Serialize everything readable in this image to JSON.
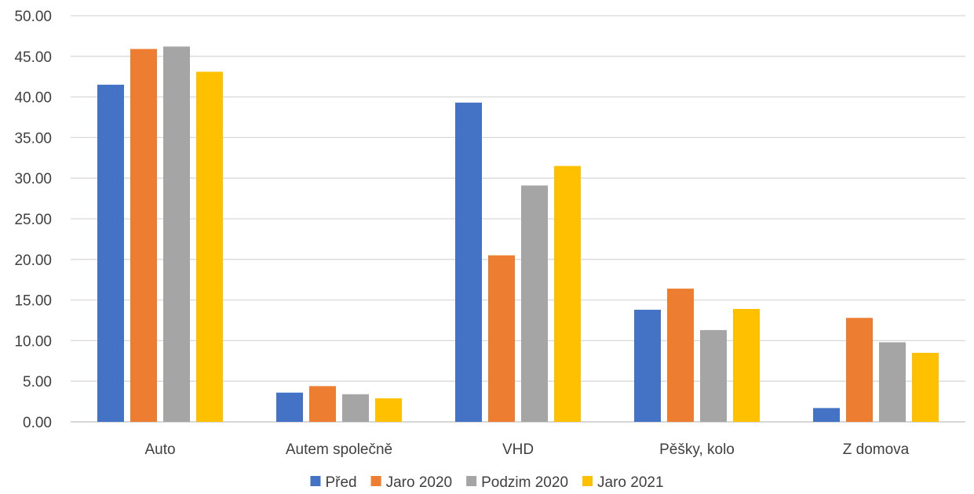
{
  "chart_data": {
    "type": "bar",
    "categories": [
      "Auto",
      "Autem společně",
      "VHD",
      "Pěšky, kolo",
      "Z domova"
    ],
    "series": [
      {
        "name": "Před",
        "color": "#4472C4",
        "values": [
          41.5,
          3.6,
          39.3,
          13.8,
          1.7
        ]
      },
      {
        "name": "Jaro 2020",
        "color": "#ED7D31",
        "values": [
          45.9,
          4.4,
          20.5,
          16.4,
          12.8
        ]
      },
      {
        "name": "Podzim 2020",
        "color": "#A5A5A5",
        "values": [
          46.2,
          3.4,
          29.1,
          11.3,
          9.8
        ]
      },
      {
        "name": "Jaro 2021",
        "color": "#FFC000",
        "values": [
          43.1,
          2.9,
          31.5,
          13.9,
          8.5
        ]
      }
    ],
    "y_ticks": [
      "0.00",
      "5.00",
      "10.00",
      "15.00",
      "20.00",
      "25.00",
      "30.00",
      "35.00",
      "40.00",
      "45.00",
      "50.00"
    ],
    "ylim": [
      0,
      50
    ],
    "grid": true,
    "legend_position": "bottom",
    "title": "",
    "xlabel": "",
    "ylabel": ""
  }
}
